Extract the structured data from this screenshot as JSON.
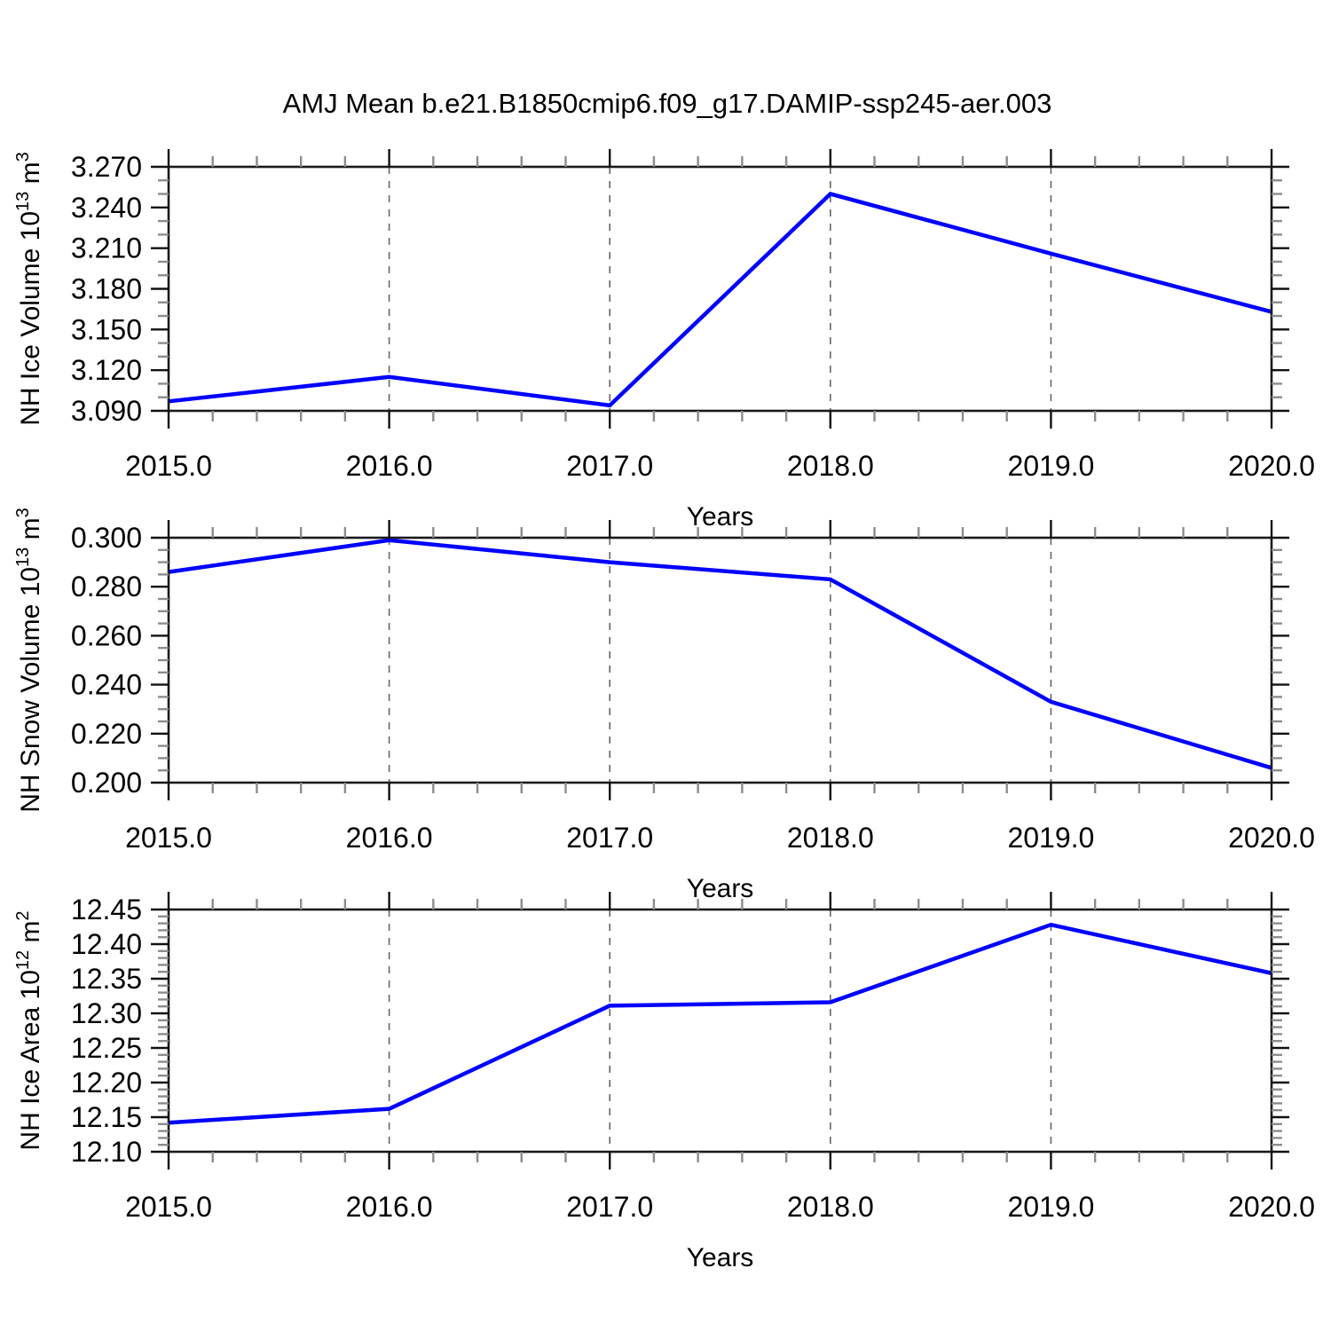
{
  "title": "AMJ Mean b.e21.B1850cmip6.f09_g17.DAMIP-ssp245-aer.003",
  "style": {
    "line_color": "#0000ff",
    "frame_color": "#1a1a1a",
    "major_tick_color": "#111111",
    "minor_tick_color": "#8c8c8c",
    "grid_color": "#666666",
    "text_color": "#000000"
  },
  "chart_data": [
    {
      "type": "line",
      "x": [
        2015.0,
        2016.0,
        2017.0,
        2018.0,
        2019.0,
        2020.0
      ],
      "values": [
        3.097,
        3.115,
        3.094,
        3.25,
        3.206,
        3.163
      ],
      "xlabel": "Years",
      "x_tick_labels": [
        "2015.0",
        "2016.0",
        "2017.0",
        "2018.0",
        "2019.0",
        "2020.0"
      ],
      "x_minor_step": 0.2,
      "xlim": [
        2015.0,
        2020.0
      ],
      "ylabel": "NH Ice Volume 10^13 m^3",
      "ylabel_segments": [
        {
          "t": "NH Ice Volume 10"
        },
        {
          "t": "13",
          "sup": true
        },
        {
          "t": " m"
        },
        {
          "t": "3",
          "sup": true
        }
      ],
      "ylim": [
        3.09,
        3.27
      ],
      "y_tick_labels": [
        "3.090",
        "3.120",
        "3.150",
        "3.180",
        "3.210",
        "3.240",
        "3.270"
      ],
      "y_tick_values": [
        3.09,
        3.12,
        3.15,
        3.18,
        3.21,
        3.24,
        3.27
      ],
      "y_minor_step": 0.01,
      "grid": "vertical-dashed-at-interior-years",
      "legend": null
    },
    {
      "type": "line",
      "x": [
        2015.0,
        2016.0,
        2017.0,
        2018.0,
        2019.0,
        2020.0
      ],
      "values": [
        0.286,
        0.299,
        0.29,
        0.283,
        0.233,
        0.206
      ],
      "xlabel": "Years",
      "x_tick_labels": [
        "2015.0",
        "2016.0",
        "2017.0",
        "2018.0",
        "2019.0",
        "2020.0"
      ],
      "x_minor_step": 0.2,
      "xlim": [
        2015.0,
        2020.0
      ],
      "ylabel": "NH Snow Volume 10^13 m^3",
      "ylabel_segments": [
        {
          "t": "NH Snow Volume 10"
        },
        {
          "t": "13",
          "sup": true
        },
        {
          "t": " m"
        },
        {
          "t": "3",
          "sup": true
        }
      ],
      "ylim": [
        0.2,
        0.3
      ],
      "y_tick_labels": [
        "0.200",
        "0.220",
        "0.240",
        "0.260",
        "0.280",
        "0.300"
      ],
      "y_tick_values": [
        0.2,
        0.22,
        0.24,
        0.26,
        0.28,
        0.3
      ],
      "y_minor_step": 0.005,
      "grid": "vertical-dashed-at-interior-years",
      "legend": null
    },
    {
      "type": "line",
      "x": [
        2015.0,
        2016.0,
        2017.0,
        2018.0,
        2019.0,
        2020.0
      ],
      "values": [
        12.142,
        12.162,
        12.311,
        12.316,
        12.428,
        12.358
      ],
      "xlabel": "Years",
      "x_tick_labels": [
        "2015.0",
        "2016.0",
        "2017.0",
        "2018.0",
        "2019.0",
        "2020.0"
      ],
      "x_minor_step": 0.2,
      "xlim": [
        2015.0,
        2020.0
      ],
      "ylabel": "NH Ice Area 10^12 m^2",
      "ylabel_segments": [
        {
          "t": "NH Ice Area 10"
        },
        {
          "t": "12",
          "sup": true
        },
        {
          "t": " m"
        },
        {
          "t": "2",
          "sup": true
        }
      ],
      "ylim": [
        12.1,
        12.45
      ],
      "y_tick_labels": [
        "12.10",
        "12.15",
        "12.20",
        "12.25",
        "12.30",
        "12.35",
        "12.40",
        "12.45"
      ],
      "y_tick_values": [
        12.1,
        12.15,
        12.2,
        12.25,
        12.3,
        12.35,
        12.4,
        12.45
      ],
      "y_minor_step": 0.01,
      "grid": "vertical-dashed-at-interior-years",
      "legend": null
    }
  ]
}
